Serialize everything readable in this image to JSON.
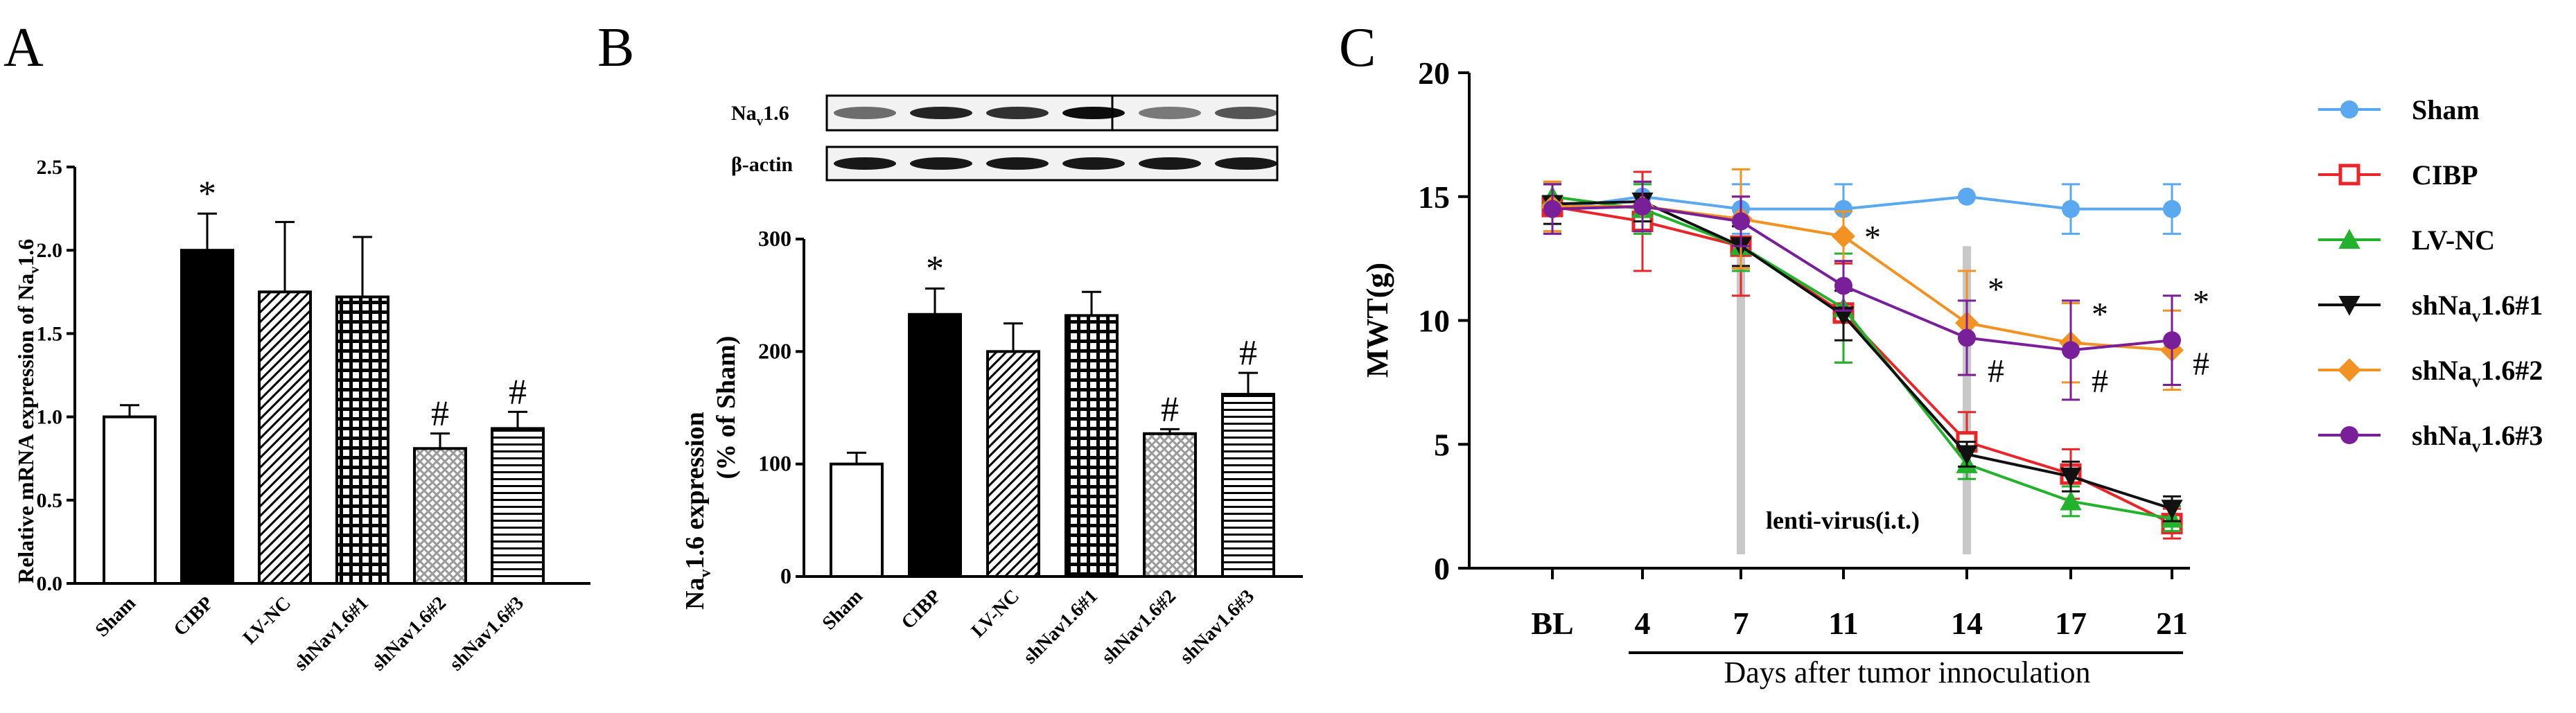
{
  "chart_data": [
    {
      "panel": "A",
      "type": "bar",
      "ylabel_main": "Relative mRNA expression of Na",
      "ylabel_sub": "v",
      "ylabel_tail": "1.6",
      "ylim": [
        0,
        2.5
      ],
      "yticks": [
        "0.0",
        "0.5",
        "1.0",
        "1.5",
        "2.0",
        "2.5"
      ],
      "categories": [
        "Sham",
        "CIBP",
        "LV-NC",
        "shNav1.6#1",
        "shNav1.6#2",
        "shNav1.6#3"
      ],
      "values": [
        1.0,
        2.0,
        1.75,
        1.72,
        0.81,
        0.93
      ],
      "errors": [
        0.07,
        0.22,
        0.42,
        0.36,
        0.09,
        0.1
      ],
      "patterns": [
        "white",
        "black",
        "diag",
        "grid",
        "crosshatch",
        "hlines"
      ],
      "marks": [
        "",
        "*",
        "",
        "",
        "#",
        "#"
      ]
    },
    {
      "panel": "B",
      "type": "bar",
      "ylabel_main": "Na",
      "ylabel_sub": "v",
      "ylabel_tail": "1.6 expression",
      "ylabel2": "(% of Sham)",
      "ylim": [
        0,
        300
      ],
      "yticks": [
        "0",
        "100",
        "200",
        "300"
      ],
      "categories": [
        "Sham",
        "CIBP",
        "LV-NC",
        "shNav1.6#1",
        "shNav1.6#2",
        "shNav1.6#3"
      ],
      "values": [
        100,
        233,
        200,
        232,
        127,
        162
      ],
      "errors": [
        10,
        23,
        25,
        21,
        4,
        19
      ],
      "patterns": [
        "white",
        "black",
        "diag",
        "grid",
        "crosshatch",
        "hlines"
      ],
      "marks": [
        "",
        "*",
        "",
        "",
        "#",
        "#"
      ],
      "blot_labels": [
        {
          "main": "Na",
          "sub": "v",
          "tail": "1.6"
        },
        {
          "main": "β-actin",
          "sub": "",
          "tail": ""
        }
      ]
    },
    {
      "panel": "C",
      "type": "line",
      "ylabel": "MWT(g)",
      "xlabel": "Days after tumor innoculation",
      "ylim": [
        0,
        20
      ],
      "yticks": [
        "0",
        "5",
        "10",
        "15",
        "20"
      ],
      "x": [
        "BL",
        "4",
        "7",
        "11",
        "14",
        "17",
        "21"
      ],
      "annotation": "lenti-virus(i.t.)",
      "series": [
        {
          "name": "Sham",
          "sub": "",
          "tail": "",
          "color": "#5aa8ef",
          "marker": "circle",
          "values": [
            14.5,
            15.0,
            14.5,
            14.5,
            15.0,
            14.5,
            14.5
          ],
          "errors": [
            1.0,
            0.5,
            1.0,
            1.0,
            0,
            1.0,
            1.0
          ]
        },
        {
          "name": "CIBP",
          "sub": "",
          "tail": "",
          "color": "#e8262a",
          "marker": "square",
          "values": [
            14.6,
            14.0,
            13.0,
            10.3,
            5.1,
            3.8,
            1.8
          ],
          "errors": [
            1.0,
            2.0,
            2.0,
            2.0,
            1.2,
            1.0,
            0.6
          ]
        },
        {
          "name": "LV-NC",
          "sub": "",
          "tail": "",
          "color": "#22b22b",
          "marker": "triangle",
          "values": [
            15.0,
            14.5,
            13.0,
            10.5,
            4.2,
            2.7,
            2.0
          ],
          "errors": [
            0.5,
            1.0,
            1.0,
            2.2,
            0.6,
            0.6,
            0.5
          ]
        },
        {
          "name": "shNa",
          "sub": "v",
          "tail": "1.6#1",
          "color": "#111111",
          "marker": "tri-down",
          "values": [
            14.7,
            14.8,
            13.0,
            10.2,
            4.6,
            3.7,
            2.4
          ],
          "errors": [
            0.8,
            0.8,
            0.8,
            1.0,
            0.5,
            0.6,
            0.5
          ]
        },
        {
          "name": "shNa",
          "sub": "v",
          "tail": "1.6#2",
          "color": "#f29222",
          "marker": "diamond",
          "values": [
            14.6,
            14.6,
            14.1,
            13.4,
            9.9,
            9.1,
            8.8
          ],
          "errors": [
            1.0,
            1.0,
            2.0,
            1.0,
            2.1,
            1.6,
            1.6
          ]
        },
        {
          "name": "shNa",
          "sub": "v",
          "tail": "1.6#3",
          "color": "#7a1f9a",
          "marker": "circle",
          "values": [
            14.5,
            14.6,
            14.0,
            11.4,
            9.3,
            8.8,
            9.2
          ],
          "errors": [
            1.0,
            1.0,
            1.0,
            1.0,
            1.5,
            2.0,
            1.8
          ]
        }
      ],
      "sig_marks": [
        {
          "text": "*",
          "x": "11",
          "y": 13.3
        },
        {
          "text": "*",
          "x": "14",
          "y": 11.2
        },
        {
          "text": "#",
          "x": "14",
          "y": 7.9
        },
        {
          "text": "*",
          "x": "17",
          "y": 10.2
        },
        {
          "text": "#",
          "x": "17",
          "y": 7.5
        },
        {
          "text": "*",
          "x": "21",
          "y": 10.7
        },
        {
          "text": "#",
          "x": "21",
          "y": 8.2
        }
      ]
    }
  ],
  "panel_labels": [
    "A",
    "B",
    "C"
  ]
}
